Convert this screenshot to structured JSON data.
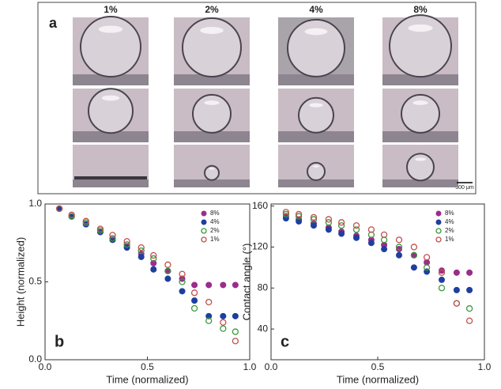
{
  "panel_a": {
    "label": "a",
    "columns": [
      "1%",
      "2%",
      "4%",
      "8%"
    ],
    "scale_bar": "300 μm"
  },
  "chart_data": [
    {
      "type": "scatter",
      "panel_label": "b",
      "x_label": "Time (normalized)",
      "y_label": "Height (normalized)",
      "x": [
        0.07,
        0.13,
        0.2,
        0.27,
        0.33,
        0.4,
        0.47,
        0.53,
        0.6,
        0.67,
        0.73,
        0.8,
        0.87,
        0.93
      ],
      "xlim": [
        0,
        1
      ],
      "xticks": [
        {
          "value": 0,
          "label": "0.0"
        },
        0.5,
        {
          "value": 1,
          "label": "1.0"
        }
      ],
      "ylim": [
        0,
        1
      ],
      "yticks": [
        {
          "value": 0,
          "label": "0.0"
        },
        0.5,
        {
          "value": 1,
          "label": "1.0"
        }
      ],
      "legend": "upper right",
      "series": [
        {
          "name": "8%",
          "color": "#9b2d8a",
          "marker": "filled",
          "values": [
            0.97,
            0.92,
            0.87,
            0.82,
            0.77,
            0.73,
            0.68,
            0.62,
            0.57,
            0.52,
            0.48,
            0.48,
            0.48,
            0.48
          ]
        },
        {
          "name": "4%",
          "color": "#1f3f9e",
          "marker": "filled",
          "values": [
            0.97,
            0.92,
            0.87,
            0.82,
            0.77,
            0.72,
            0.66,
            0.58,
            0.52,
            0.44,
            0.38,
            0.28,
            0.28,
            0.28
          ]
        },
        {
          "name": "2%",
          "color": "#3a9a3a",
          "marker": "open",
          "values": [
            0.97,
            0.92,
            0.88,
            0.83,
            0.78,
            0.74,
            0.7,
            0.65,
            0.57,
            0.5,
            0.33,
            0.25,
            0.2,
            0.18
          ]
        },
        {
          "name": "1%",
          "color": "#c0504d",
          "marker": "open",
          "values": [
            0.97,
            0.93,
            0.89,
            0.84,
            0.8,
            0.76,
            0.72,
            0.67,
            0.61,
            0.55,
            0.43,
            0.37,
            0.24,
            0.12
          ]
        }
      ]
    },
    {
      "type": "scatter",
      "panel_label": "c",
      "x_label": "Time (normalized)",
      "y_label": "Contact angle (°)",
      "x": [
        0.07,
        0.13,
        0.2,
        0.27,
        0.33,
        0.4,
        0.47,
        0.53,
        0.6,
        0.67,
        0.73,
        0.8,
        0.87,
        0.93
      ],
      "xlim": [
        0,
        1
      ],
      "xticks": [
        {
          "value": 0,
          "label": "0.0"
        },
        0.5,
        {
          "value": 1,
          "label": "1.0"
        }
      ],
      "ylim": [
        10,
        162
      ],
      "yticks": [
        40,
        80,
        120,
        160
      ],
      "legend": "upper right",
      "series": [
        {
          "name": "8%",
          "color": "#9b2d8a",
          "marker": "filled",
          "values": [
            150,
            147,
            143,
            139,
            135,
            131,
            127,
            122,
            118,
            112,
            105,
            97,
            95,
            95
          ]
        },
        {
          "name": "4%",
          "color": "#1f3f9e",
          "marker": "filled",
          "values": [
            148,
            145,
            141,
            137,
            133,
            129,
            124,
            118,
            112,
            100,
            96,
            88,
            78,
            78
          ]
        },
        {
          "name": "2%",
          "color": "#3a9a3a",
          "marker": "open",
          "values": [
            152,
            150,
            147,
            144,
            141,
            137,
            132,
            127,
            120,
            112,
            100,
            80,
            65,
            60
          ]
        },
        {
          "name": "1%",
          "color": "#c0504d",
          "marker": "open",
          "values": [
            154,
            152,
            149,
            147,
            144,
            141,
            137,
            132,
            127,
            120,
            110,
            95,
            65,
            48
          ]
        }
      ]
    }
  ]
}
